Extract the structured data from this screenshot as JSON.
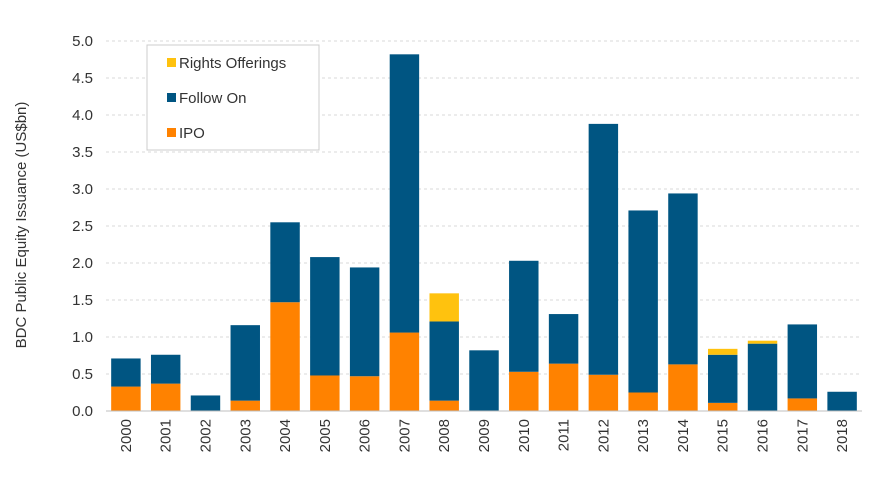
{
  "chart_data": {
    "type": "bar",
    "stacked": true,
    "ylabel": "BDC Public Equity Issuance (US$bn)",
    "ylim": [
      0,
      5.0
    ],
    "yticks": [
      "0.0",
      "0.5",
      "1.0",
      "1.5",
      "2.0",
      "2.5",
      "3.0",
      "3.5",
      "4.0",
      "4.5",
      "5.0"
    ],
    "grid": true,
    "legend_position": "top-left",
    "categories": [
      "2000",
      "2001",
      "2002",
      "2003",
      "2004",
      "2005",
      "2006",
      "2007",
      "2008",
      "2009",
      "2010",
      "2011",
      "2012",
      "2013",
      "2014",
      "2015",
      "2016",
      "2017",
      "2018"
    ],
    "series": [
      {
        "name": "IPO",
        "color": "#FF8200",
        "values": [
          0.33,
          0.37,
          0,
          0.14,
          1.47,
          0.48,
          0.47,
          1.06,
          0.14,
          0,
          0.53,
          0.64,
          0.49,
          0.25,
          0.63,
          0.11,
          0,
          0.17,
          0
        ]
      },
      {
        "name": "Follow On",
        "color": "#005582",
        "values": [
          0.38,
          0.39,
          0.21,
          1.02,
          1.08,
          1.6,
          1.47,
          3.76,
          1.07,
          0.82,
          1.5,
          0.67,
          3.39,
          2.46,
          2.31,
          0.65,
          0.91,
          1.0,
          0.26
        ]
      },
      {
        "name": "Rights Offerings",
        "color": "#FFC20E",
        "values": [
          0,
          0,
          0,
          0,
          0,
          0,
          0,
          0,
          0.38,
          0,
          0,
          0,
          0,
          0,
          0,
          0.08,
          0.04,
          0,
          0
        ]
      }
    ],
    "legend_order": [
      "Rights Offerings",
      "Follow On",
      "IPO"
    ]
  }
}
